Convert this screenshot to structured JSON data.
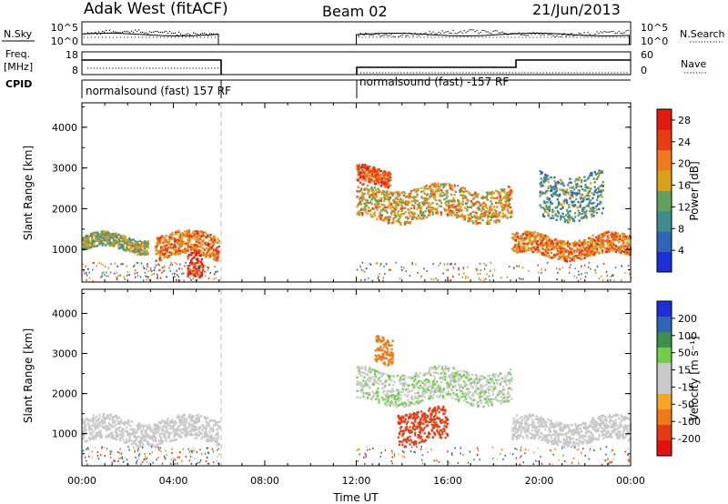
{
  "header": {
    "radar": "Adak West (fitACF)",
    "beam": "Beam 02",
    "date": "21/Jun/2013"
  },
  "strips": {
    "nsky_label": "N.Sky",
    "nsky_ticks": [
      "10^5",
      "10^0"
    ],
    "nsearch_label": "N.Search",
    "nsearch_ticks": [
      "10^5",
      "10^0"
    ],
    "freq_label_1": "Freq.",
    "freq_label_2": "[MHz]",
    "freq_ticks": [
      "18",
      "8"
    ],
    "nave_label": "Nave",
    "nave_ticks": [
      "60",
      "0"
    ],
    "cpid_label": "CPID",
    "cpid_segments": [
      {
        "label": "normalsound (fast) 157 RF",
        "start_hour": 0,
        "end_hour": 6
      },
      {
        "label": "normalsound (fast) -157 RF",
        "start_hour": 12,
        "end_hour": 24
      }
    ]
  },
  "chart_data": [
    {
      "type": "heatmap",
      "name": "power",
      "ylabel": "Slant Range [km]",
      "xlabel": "",
      "ylim": [
        200,
        4600
      ],
      "yticks": [
        "1000",
        "2000",
        "3000",
        "4000"
      ],
      "xlim": [
        0,
        24
      ],
      "colorbar_title": "Power [dB]",
      "colorbar_ticks": [
        "4",
        "8",
        "12",
        "16",
        "20",
        "24",
        "28"
      ],
      "colorbar_range": [
        0,
        30
      ],
      "data_coverage_hours": [
        [
          0,
          6
        ],
        [
          12,
          24
        ]
      ],
      "echo_bands": [
        {
          "start_hour": 0.0,
          "end_hour": 2.9,
          "range_km": [
            1000,
            1350
          ],
          "power_db": 14
        },
        {
          "start_hour": 3.2,
          "end_hour": 6.0,
          "range_km": [
            800,
            1400
          ],
          "power_db": 22
        },
        {
          "start_hour": 4.6,
          "end_hour": 5.3,
          "range_km": [
            250,
            900
          ],
          "power_db": 28
        },
        {
          "start_hour": 12.0,
          "end_hour": 18.8,
          "range_km": [
            1750,
            2550
          ],
          "power_db": 18
        },
        {
          "start_hour": 12.0,
          "end_hour": 13.5,
          "range_km": [
            2600,
            3000
          ],
          "power_db": 25
        },
        {
          "start_hour": 18.8,
          "end_hour": 24.0,
          "range_km": [
            850,
            1350
          ],
          "power_db": 22
        },
        {
          "start_hour": 20.0,
          "end_hour": 22.8,
          "range_km": [
            1800,
            2900
          ],
          "power_db": 10
        }
      ]
    },
    {
      "type": "heatmap",
      "name": "velocity",
      "ylabel": "Slant Range [km]",
      "xlabel": "Time UT",
      "ylim": [
        200,
        4600
      ],
      "yticks": [
        "1000",
        "2000",
        "3000",
        "4000"
      ],
      "xlim": [
        0,
        24
      ],
      "xticks": [
        "00:00",
        "04:00",
        "08:00",
        "12:00",
        "16:00",
        "20:00",
        "00:00"
      ],
      "colorbar_title": "Velocity [m s⁻¹]",
      "colorbar_ticks": [
        "200",
        "100",
        "50",
        "15",
        "-15",
        "-50",
        "-100",
        "-200"
      ],
      "data_coverage_hours": [
        [
          0,
          6
        ],
        [
          12,
          24
        ]
      ],
      "echo_bands": [
        {
          "start_hour": 0.0,
          "end_hour": 6.0,
          "range_km": [
            800,
            1400
          ],
          "velocity": 0
        },
        {
          "start_hour": 12.0,
          "end_hour": 18.8,
          "range_km": [
            1800,
            2600
          ],
          "velocity": 10
        },
        {
          "start_hour": 13.8,
          "end_hour": 16.0,
          "range_km": [
            800,
            1600
          ],
          "velocity": -90
        },
        {
          "start_hour": 12.8,
          "end_hour": 13.6,
          "range_km": [
            2800,
            3500
          ],
          "velocity": -60
        },
        {
          "start_hour": 18.8,
          "end_hour": 24.0,
          "range_km": [
            800,
            1400
          ],
          "velocity": 0
        }
      ]
    }
  ],
  "colors": {
    "power_scale": [
      "#1a2fd8",
      "#2f64b8",
      "#3e8c90",
      "#5fa15d",
      "#d8a216",
      "#f07b1f",
      "#e93d12",
      "#e31a10"
    ],
    "velocity_scale": [
      "#1a2fd8",
      "#2f64b8",
      "#3f8f4c",
      "#6fcf46",
      "#c9c9c9",
      "#c9c9c9",
      "#f5a623",
      "#ef7a18",
      "#e53a12",
      "#e51010"
    ]
  }
}
